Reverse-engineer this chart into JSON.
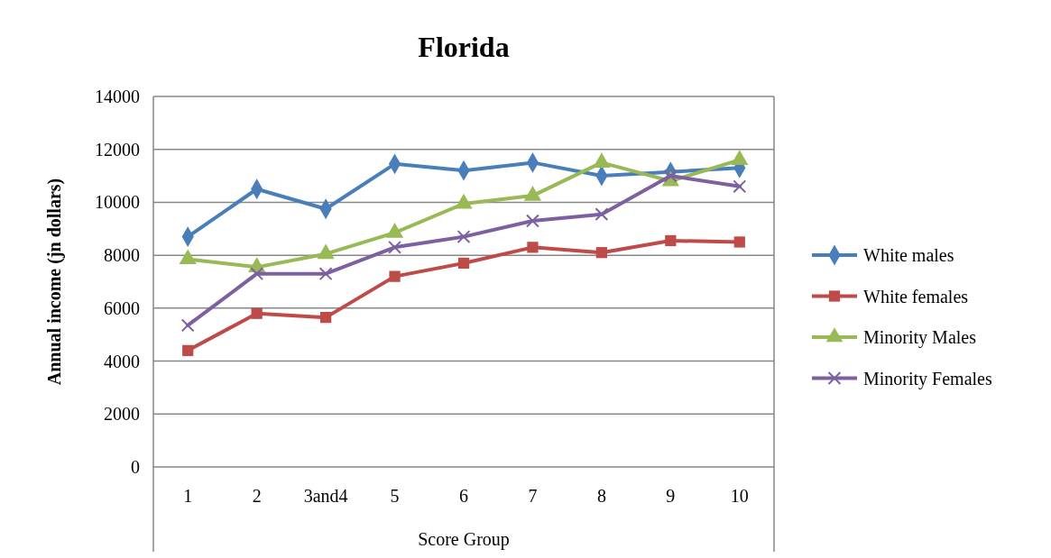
{
  "chart_data": {
    "type": "line",
    "title": "Florida",
    "xlabel": "Score Group",
    "ylabel": "Annual income (jn  dollars)",
    "categories": [
      "1",
      "2",
      "3and4",
      "5",
      "6",
      "7",
      "8",
      "9",
      "10"
    ],
    "series": [
      {
        "name": "White males",
        "color": "#4a7ebb",
        "marker": "diamond",
        "values": [
          8700,
          10500,
          9750,
          11450,
          11200,
          11500,
          11000,
          11150,
          11300
        ]
      },
      {
        "name": "White females",
        "color": "#be4b48",
        "marker": "square",
        "values": [
          4400,
          5800,
          5650,
          7200,
          7700,
          8300,
          8100,
          8550,
          8500
        ]
      },
      {
        "name": "Minority Males",
        "color": "#98b954",
        "marker": "triangle",
        "values": [
          7850,
          7550,
          8050,
          8850,
          9950,
          10250,
          11500,
          10800,
          11600
        ]
      },
      {
        "name": "Minority Females",
        "color": "#7d60a0",
        "marker": "cross",
        "values": [
          5350,
          7300,
          7300,
          8300,
          8700,
          9300,
          9550,
          11000,
          10600
        ]
      }
    ],
    "ylim": [
      0,
      14000
    ],
    "yticks": [
      0,
      2000,
      4000,
      6000,
      8000,
      10000,
      12000,
      14000
    ],
    "grid": "y",
    "legend": "right",
    "line_style": "solid"
  }
}
